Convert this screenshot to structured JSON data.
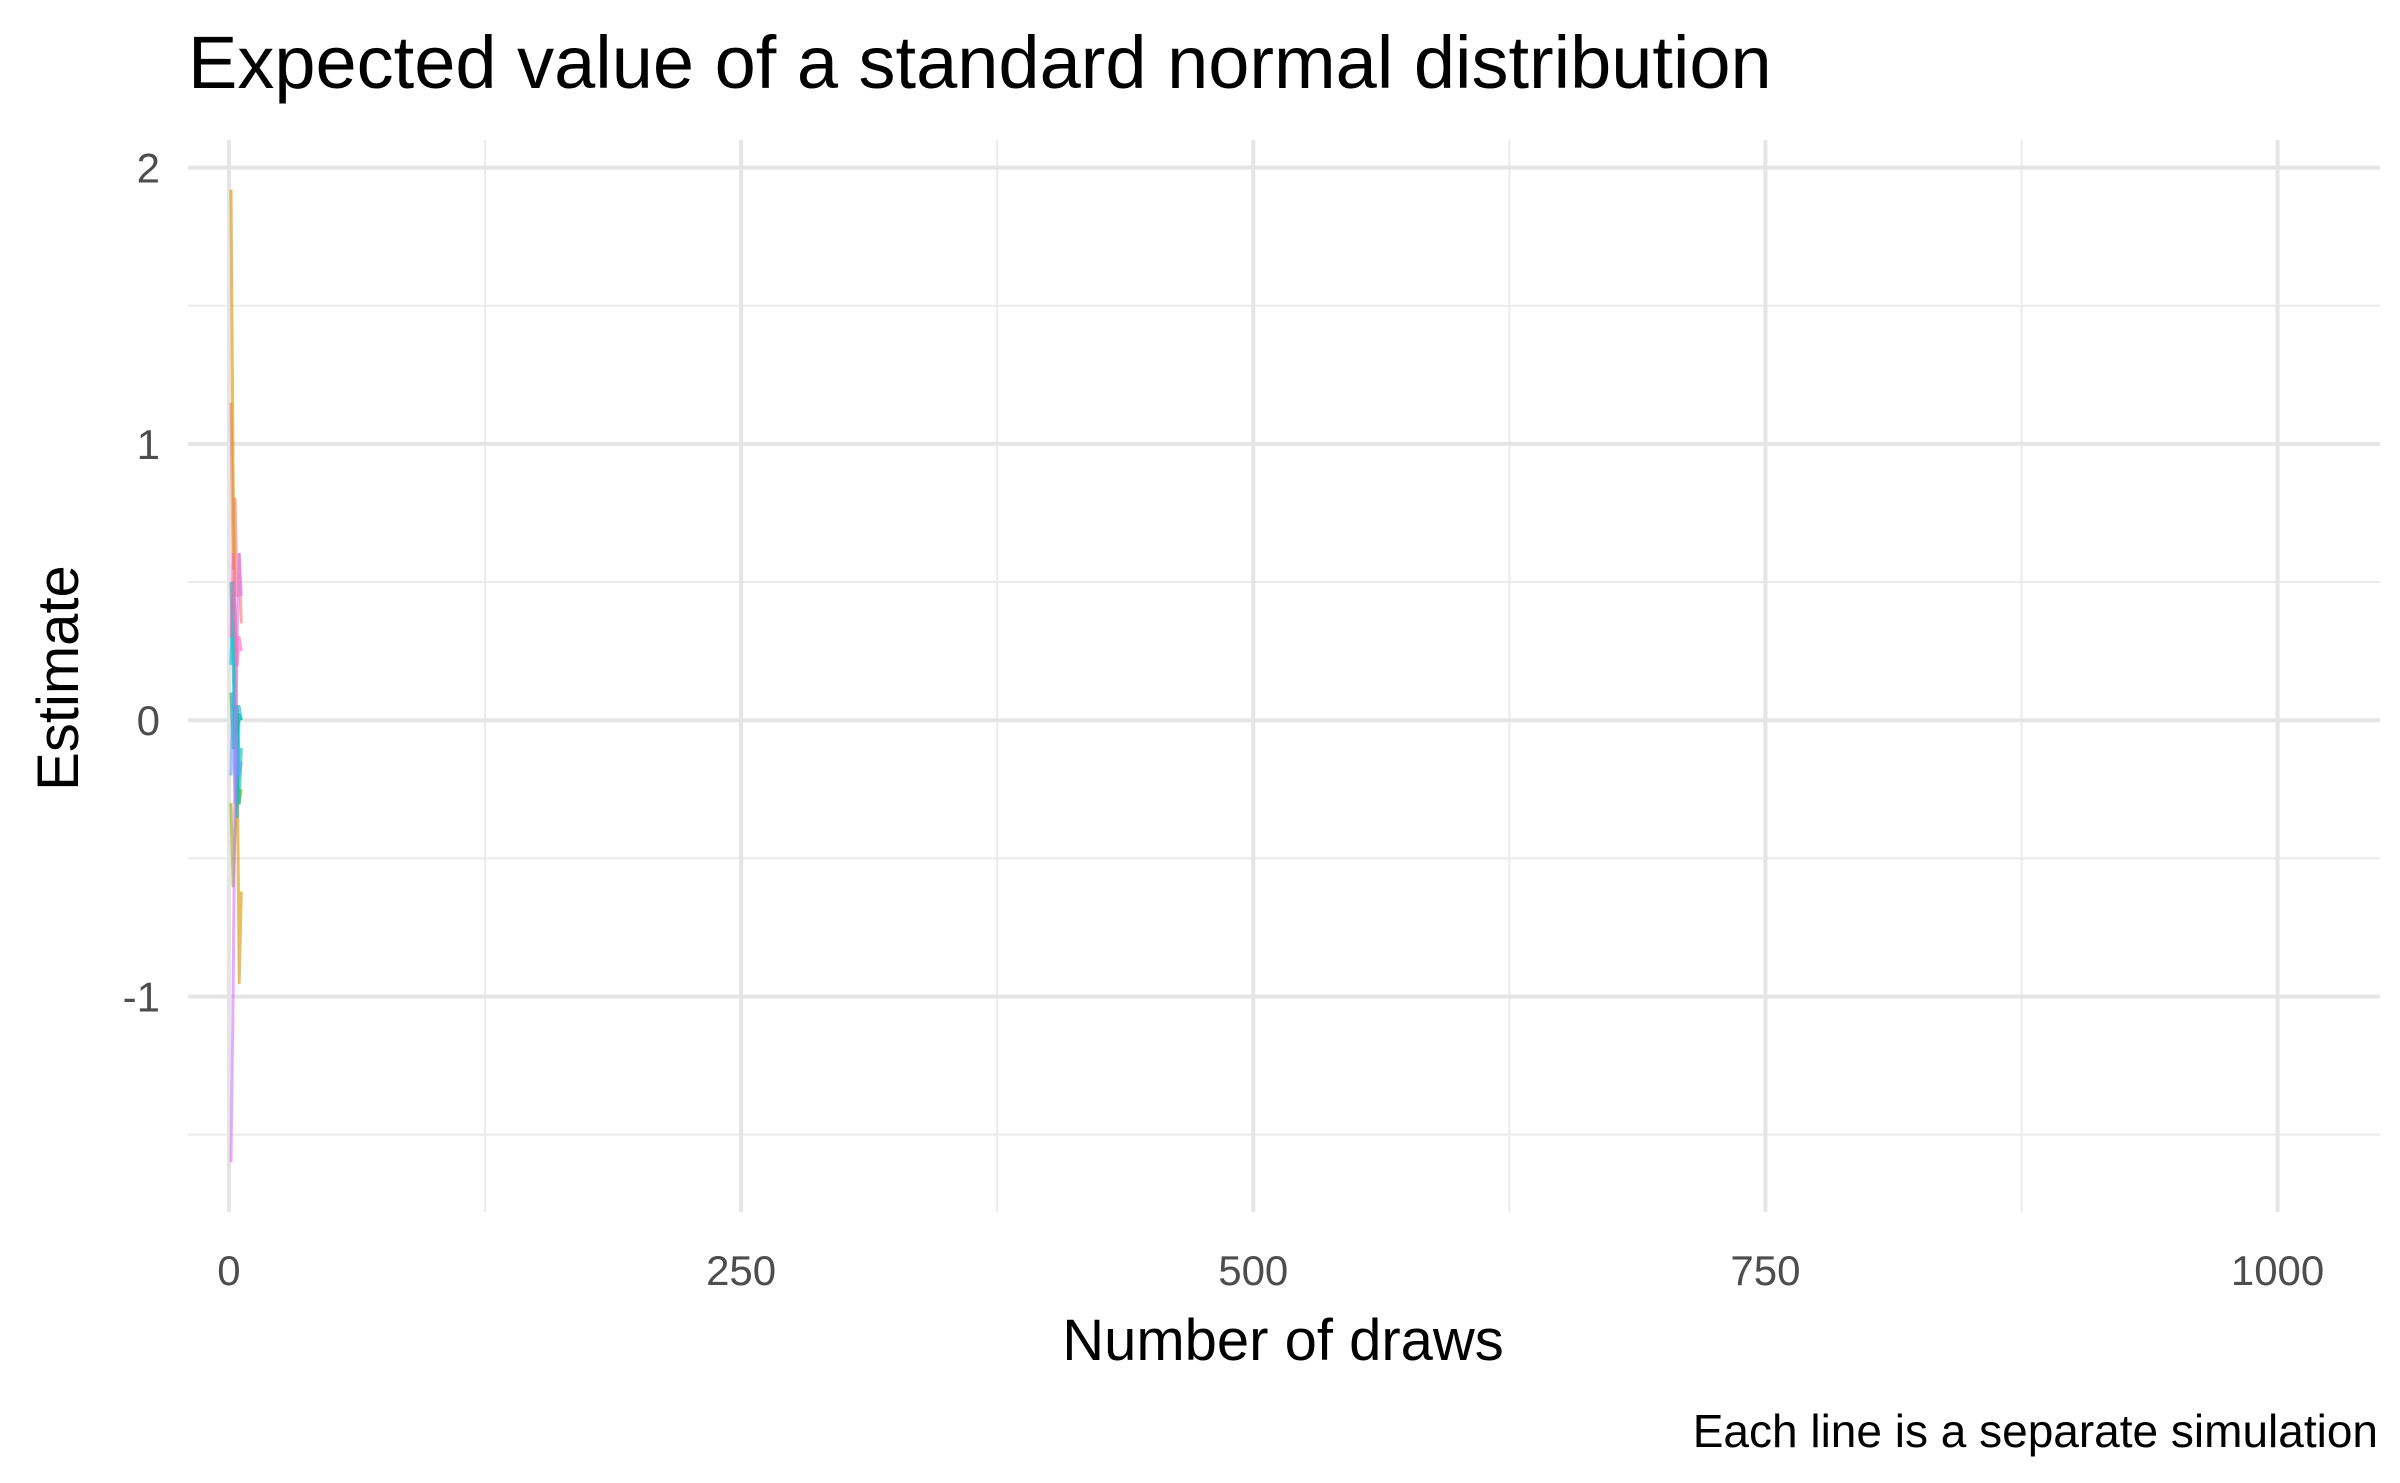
{
  "chart_data": {
    "type": "line",
    "title": "Expected value of a standard normal distribution",
    "xlabel": "Number of draws",
    "ylabel": "Estimate",
    "caption": "Each line is a separate simulation",
    "xlim": [
      -20,
      1050
    ],
    "ylim": [
      -1.78,
      2.1
    ],
    "x_ticks": [
      {
        "value": 0,
        "label": "0"
      },
      {
        "value": 250,
        "label": "250"
      },
      {
        "value": 500,
        "label": "500"
      },
      {
        "value": 750,
        "label": "750"
      },
      {
        "value": 1000,
        "label": "1000"
      }
    ],
    "x_minor": [
      125,
      375,
      625,
      875
    ],
    "y_ticks": [
      {
        "value": 2,
        "label": "2"
      },
      {
        "value": 1,
        "label": "1"
      },
      {
        "value": 0,
        "label": "0"
      },
      {
        "value": -1,
        "label": "-1"
      }
    ],
    "y_minor": [
      1.5,
      0.5,
      -0.5,
      -1.5
    ],
    "grid": true,
    "legend": "none",
    "series": [
      {
        "color": "#F8766D",
        "x": [
          1,
          2,
          3,
          4,
          5,
          6
        ],
        "y": [
          1.15,
          0.55,
          0.8,
          0.45,
          0.6,
          0.35
        ]
      },
      {
        "color": "#D39200",
        "x": [
          1,
          2,
          3,
          4,
          5,
          6
        ],
        "y": [
          1.92,
          0.9,
          0.3,
          -0.1,
          -0.95,
          -0.62
        ]
      },
      {
        "color": "#93AA00",
        "x": [
          1,
          2,
          3,
          4,
          5,
          6
        ],
        "y": [
          -0.3,
          -0.6,
          -0.4,
          -0.2,
          -0.3,
          -0.25
        ]
      },
      {
        "color": "#00BA38",
        "x": [
          1,
          2,
          3,
          4,
          5,
          6
        ],
        "y": [
          0.1,
          -0.1,
          0.05,
          -0.05,
          0.02,
          0.0
        ]
      },
      {
        "color": "#00C19F",
        "x": [
          1,
          2,
          3,
          4,
          5,
          6
        ],
        "y": [
          0.5,
          0.2,
          -0.1,
          0.05,
          -0.3,
          -0.1
        ]
      },
      {
        "color": "#00B9E3",
        "x": [
          1,
          2,
          3,
          4,
          5,
          6
        ],
        "y": [
          0.2,
          0.5,
          -0.2,
          -0.35,
          0.05,
          0.0
        ]
      },
      {
        "color": "#619CFF",
        "x": [
          1,
          2,
          3,
          4,
          5,
          6
        ],
        "y": [
          -0.2,
          0.1,
          -0.3,
          -0.1,
          -0.2,
          -0.15
        ]
      },
      {
        "color": "#DB72FB",
        "x": [
          1,
          2,
          3,
          4,
          5,
          6
        ],
        "y": [
          -1.6,
          -1.0,
          -0.2,
          0.3,
          0.6,
          0.45
        ]
      },
      {
        "color": "#FF61C3",
        "x": [
          1,
          2,
          3,
          4,
          5,
          6
        ],
        "y": [
          0.3,
          0.6,
          0.4,
          0.2,
          0.3,
          0.25
        ]
      }
    ]
  }
}
